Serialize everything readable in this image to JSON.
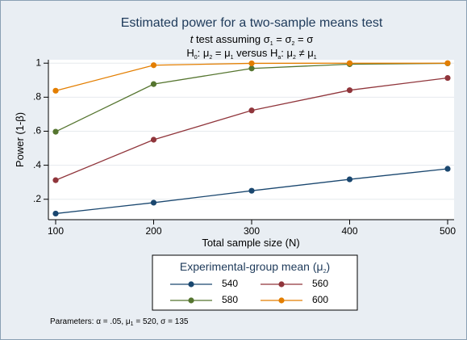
{
  "chart_data": {
    "type": "line",
    "title": "Estimated power for a two-sample means test",
    "subtitle_line1": "t test assuming σ₁ = σ₂ = σ",
    "subtitle_line2": "H₀: μ₂ = μ₁  versus  Hₐ: μ₂ ≠ μ₁",
    "xlabel": "Total sample size (N)",
    "ylabel": "Power (1-β)",
    "x": [
      100,
      200,
      300,
      400,
      500
    ],
    "x_ticks": [
      100,
      200,
      300,
      400,
      500
    ],
    "y_ticks": [
      0.2,
      0.4,
      0.6,
      0.8,
      1
    ],
    "y_tick_labels": [
      ".2",
      ".4",
      ".6",
      ".8",
      "1"
    ],
    "xlim": [
      100,
      500
    ],
    "ylim": [
      0.08,
      1.02
    ],
    "grid": "horizontal",
    "series": [
      {
        "name": "540",
        "color": "#1a476f",
        "values": [
          0.116,
          0.18,
          0.25,
          0.317,
          0.379
        ]
      },
      {
        "name": "560",
        "color": "#90353b",
        "values": [
          0.312,
          0.55,
          0.722,
          0.841,
          0.913
        ]
      },
      {
        "name": "580",
        "color": "#55752f",
        "values": [
          0.597,
          0.877,
          0.969,
          0.994,
          0.999
        ]
      },
      {
        "name": "600",
        "color": "#e37e00",
        "values": [
          0.838,
          0.988,
          0.999,
          1.0,
          1.0
        ]
      }
    ],
    "legend": {
      "title": "Experimental-group mean (μ₂)",
      "placement": "bottom"
    },
    "note": "Parameters: α = .05, μ₁ = 520, σ = 135"
  }
}
